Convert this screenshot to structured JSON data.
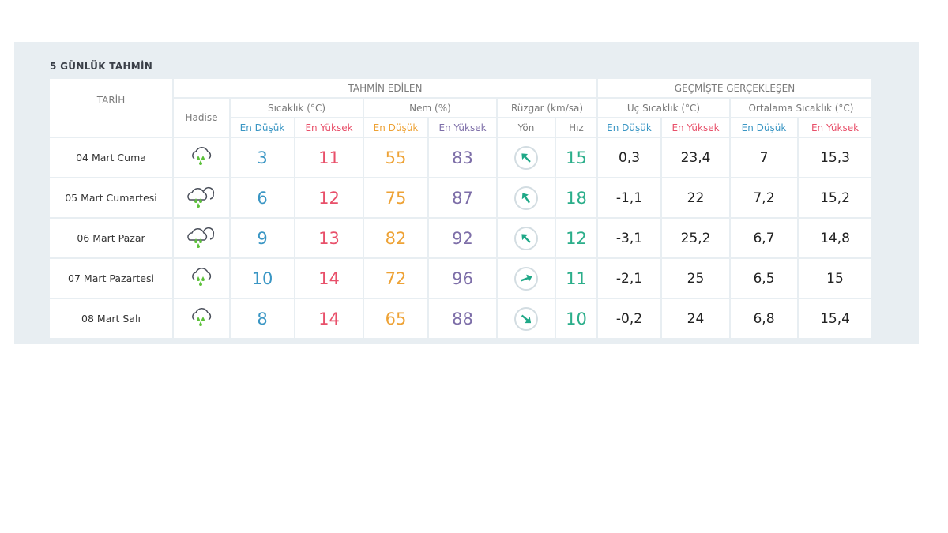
{
  "title": "5 GÜNLÜK TAHMİN",
  "headers": {
    "tarih": "TARİH",
    "tahmin": "TAHMİN EDİLEN",
    "gecmis": "GEÇMİŞTE GERÇEKLEŞEN",
    "hadise": "Hadise",
    "sicaklik": "Sıcaklık (°C)",
    "nem": "Nem (%)",
    "ruzgar": "Rüzgar (km/sa)",
    "uc": "Uç Sıcaklık (°C)",
    "ortalama": "Ortalama Sıcaklık (°C)",
    "low": "En Düşük",
    "high": "En Yüksek",
    "yon": "Yön",
    "hiz": "Hız"
  },
  "rows": [
    {
      "date": "04 Mart Cuma",
      "icon": "rain-cloud-icon",
      "temp_low": "3",
      "temp_high": "11",
      "hum_low": "55",
      "hum_high": "83",
      "wind_dir_deg": 315,
      "wind_speed": "15",
      "ext_low": "0,3",
      "ext_high": "23,4",
      "avg_low": "7",
      "avg_high": "15,3"
    },
    {
      "date": "05 Mart Cumartesi",
      "icon": "double-cloud-rain-icon",
      "temp_low": "6",
      "temp_high": "12",
      "hum_low": "75",
      "hum_high": "87",
      "wind_dir_deg": 325,
      "wind_speed": "18",
      "ext_low": "-1,1",
      "ext_high": "22",
      "avg_low": "7,2",
      "avg_high": "15,2"
    },
    {
      "date": "06 Mart Pazar",
      "icon": "double-cloud-rain-icon",
      "temp_low": "9",
      "temp_high": "13",
      "hum_low": "82",
      "hum_high": "92",
      "wind_dir_deg": 315,
      "wind_speed": "12",
      "ext_low": "-3,1",
      "ext_high": "25,2",
      "avg_low": "6,7",
      "avg_high": "14,8"
    },
    {
      "date": "07 Mart Pazartesi",
      "icon": "rain-cloud-icon",
      "temp_low": "10",
      "temp_high": "14",
      "hum_low": "72",
      "hum_high": "96",
      "wind_dir_deg": 70,
      "wind_speed": "11",
      "ext_low": "-2,1",
      "ext_high": "25",
      "avg_low": "6,5",
      "avg_high": "15"
    },
    {
      "date": "08 Mart Salı",
      "icon": "rain-cloud-icon",
      "temp_low": "8",
      "temp_high": "14",
      "hum_low": "65",
      "hum_high": "88",
      "wind_dir_deg": 130,
      "wind_speed": "10",
      "ext_low": "-0,2",
      "ext_high": "24",
      "avg_low": "6,8",
      "avg_high": "15,4"
    }
  ]
}
